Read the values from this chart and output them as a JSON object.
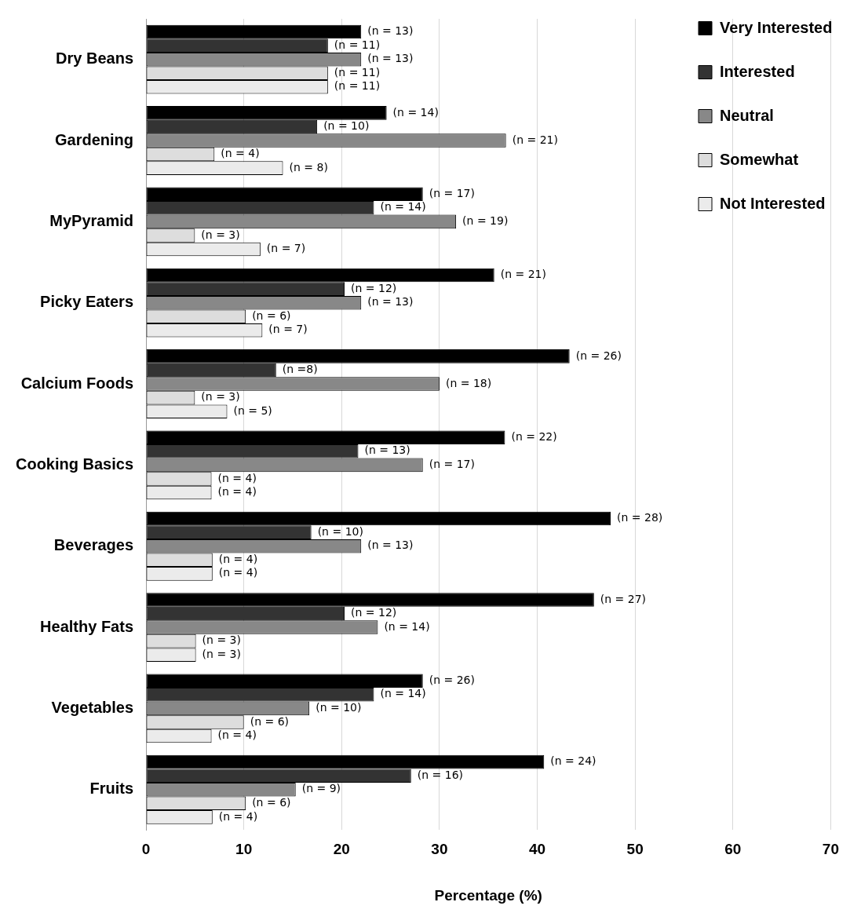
{
  "chart_data": {
    "type": "bar",
    "orientation": "horizontal",
    "xlabel": "Percentage (%)",
    "categories": [
      "Dry Beans",
      "Gardening",
      "MyPyramid",
      "Picky Eaters",
      "Calcium Foods",
      "Cooking Basics",
      "Beverages",
      "Healthy Fats",
      "Vegetables",
      "Fruits"
    ],
    "xlim": [
      0,
      70
    ],
    "xticks": [
      0,
      10,
      20,
      30,
      40,
      50,
      60,
      70
    ],
    "grid": "x",
    "legend": "top right",
    "series": [
      {
        "name": "Very Interested",
        "color": "#000000",
        "values": [
          22.0,
          24.6,
          28.3,
          35.6,
          43.3,
          36.7,
          47.5,
          45.8,
          28.3,
          40.7
        ]
      },
      {
        "name": "Interested",
        "color": "#333333",
        "values": [
          18.6,
          17.5,
          23.3,
          20.3,
          13.3,
          21.7,
          16.9,
          20.3,
          23.3,
          27.1
        ]
      },
      {
        "name": "Neutral",
        "color": "#888888",
        "values": [
          22.0,
          36.8,
          31.7,
          22.0,
          30.0,
          28.3,
          22.0,
          23.7,
          16.7,
          15.3
        ]
      },
      {
        "name": "Somewhat",
        "color": "#dddddd",
        "values": [
          18.6,
          7.0,
          5.0,
          10.2,
          5.0,
          6.7,
          6.8,
          5.1,
          10.0,
          10.2
        ]
      },
      {
        "name": "Not Interested",
        "color": "#ebebeb",
        "values": [
          18.6,
          14.0,
          11.7,
          11.9,
          8.3,
          6.7,
          6.8,
          5.1,
          6.7,
          6.8
        ]
      }
    ],
    "annotations": [
      "(n = 13)",
      "(n = 11)",
      "(n = 13)",
      "(n = 11)",
      "(n = 11)",
      "(n = 14)",
      "(n = 10)",
      "(n = 21)",
      "(n = 4)",
      "(n = 8)",
      "(n = 17)",
      "(n = 14)",
      "(n = 19)",
      "(n = 3)",
      "(n = 7)",
      "(n = 21)",
      "(n = 12)",
      "(n = 13)",
      "(n = 6)",
      "(n = 7)",
      "(n = 26)",
      "(n =8)",
      "(n = 18)",
      "(n = 3)",
      "(n = 5)",
      "(n = 22)",
      "(n = 13)",
      "(n = 17)",
      "(n = 4)",
      "(n = 4)",
      "(n = 28)",
      "(n = 10)",
      "(n = 13)",
      "(n = 4)",
      "(n = 4)",
      "(n = 27)",
      "(n = 12)",
      "(n = 14)",
      "(n = 3)",
      "(n = 3)",
      "(n = 26)",
      "(n = 14)",
      "(n = 10)",
      "(n = 6)",
      "(n = 4)",
      "(n = 24)",
      "(n = 16)",
      "(n = 9)",
      "(n = 6)",
      "(n = 4)"
    ]
  }
}
